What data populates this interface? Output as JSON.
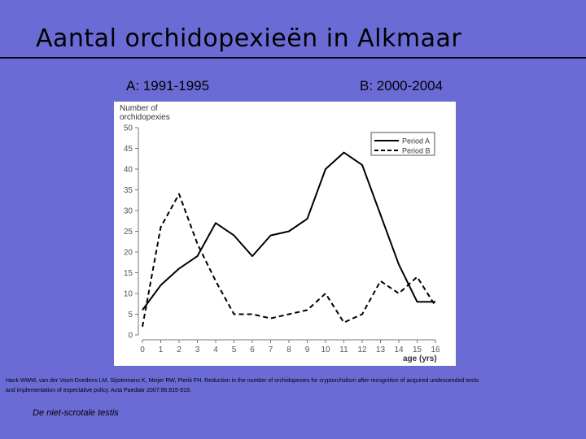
{
  "slide": {
    "title": "Aantal orchidopexieën in Alkmaar",
    "label_a": "A: 1991-1995",
    "label_b": "B: 2000-2004",
    "reference_line1": "Hack WWM, van der Voort-Doedens LM, Sijstermans K, Meijer RW, Pierik FH. Reduction in the number of orchidopexies for cryptorchidism after recognition of acquired undescended testis",
    "reference_line2": "and implementation of expectative policy. Acta Paediatr 2007;96:915-918.",
    "footer": "De niet-scrotale testis"
  },
  "chart_data": {
    "type": "line",
    "ylabel_line1": "Number of",
    "ylabel_line2": "orchidopexies",
    "xlabel": "age (yrs)",
    "x": [
      0,
      1,
      2,
      3,
      4,
      5,
      6,
      7,
      8,
      9,
      10,
      11,
      12,
      13,
      14,
      15,
      16
    ],
    "yticks": [
      0,
      5,
      10,
      15,
      20,
      25,
      30,
      35,
      40,
      45,
      50
    ],
    "ylim": [
      0,
      50
    ],
    "xlim": [
      0,
      16
    ],
    "grid": false,
    "legend_position": "top-right",
    "series": [
      {
        "name": "Period A",
        "dash": "solid",
        "color": "#000000",
        "values": [
          6,
          12,
          16,
          19,
          27,
          24,
          19,
          24,
          25,
          28,
          40,
          44,
          41,
          29,
          17,
          8,
          8
        ]
      },
      {
        "name": "Period B",
        "dash": "dashed",
        "color": "#000000",
        "values": [
          2,
          26,
          34,
          22,
          13,
          5,
          5,
          4,
          5,
          6,
          10,
          3,
          5,
          13,
          10,
          14,
          7
        ]
      }
    ]
  }
}
